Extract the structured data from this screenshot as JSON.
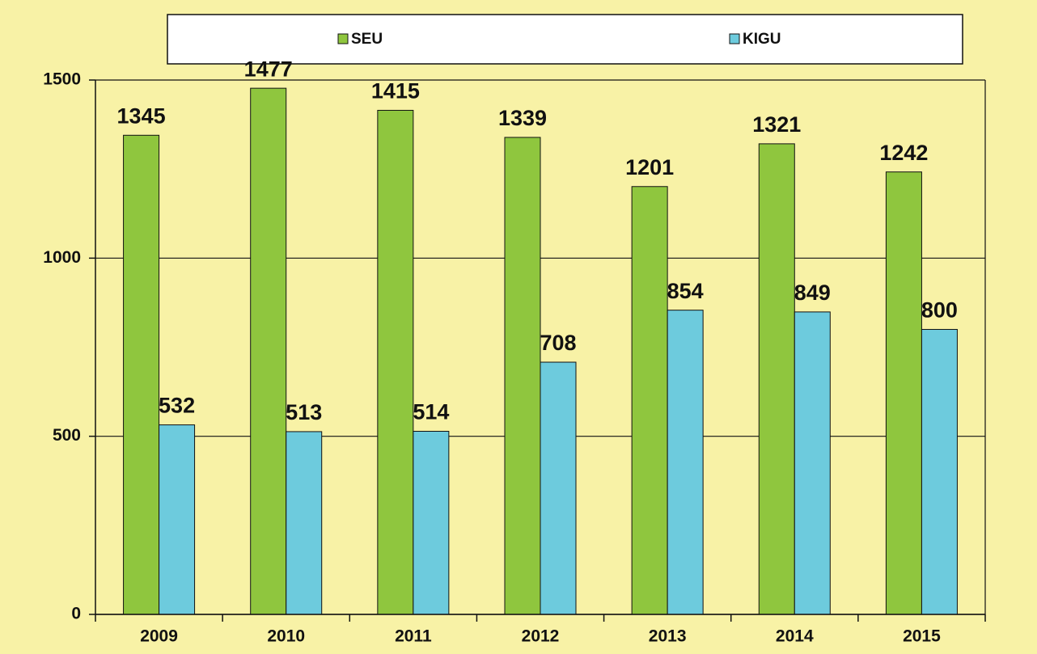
{
  "chart_data": {
    "type": "bar",
    "categories": [
      "2009",
      "2010",
      "2011",
      "2012",
      "2013",
      "2014",
      "2015"
    ],
    "series": [
      {
        "name": "SEU",
        "color": "#8fc63e",
        "values": [
          1345,
          1477,
          1415,
          1339,
          1201,
          1321,
          1242
        ]
      },
      {
        "name": "KIGU",
        "color": "#6dcbdd",
        "values": [
          532,
          513,
          514,
          708,
          854,
          849,
          800
        ]
      }
    ],
    "ylim": [
      0,
      1500
    ],
    "yticks": [
      0,
      500,
      1000,
      1500
    ],
    "grid": true,
    "legend": "top"
  }
}
